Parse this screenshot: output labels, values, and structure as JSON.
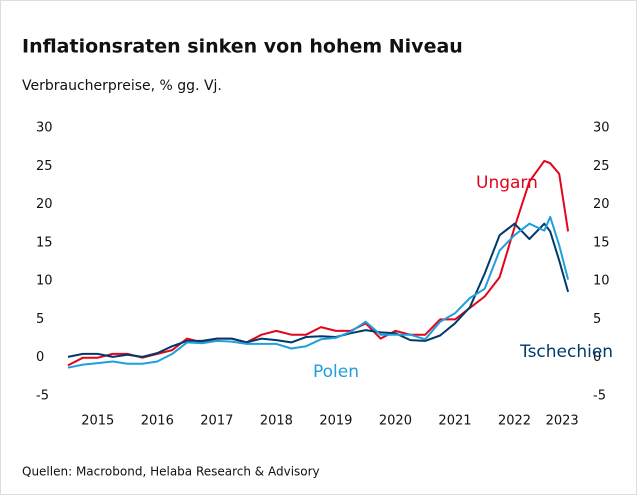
{
  "chart_data": {
    "type": "line",
    "title": "Inflationsraten sinken von hohem Niveau",
    "subtitle": "Verbraucherpreise, % gg. Vj.",
    "source": "Quellen: Macrobond, Helaba Research & Advisory",
    "x": [
      2015.0,
      2015.25,
      2015.5,
      2015.75,
      2016.0,
      2016.25,
      2016.5,
      2016.75,
      2017.0,
      2017.25,
      2017.5,
      2017.75,
      2018.0,
      2018.25,
      2018.5,
      2018.75,
      2019.0,
      2019.25,
      2019.5,
      2019.75,
      2020.0,
      2020.25,
      2020.5,
      2020.75,
      2021.0,
      2021.25,
      2021.5,
      2021.75,
      2022.0,
      2022.25,
      2022.5,
      2022.75,
      2023.0,
      2023.1,
      2023.25,
      2023.4
    ],
    "series": [
      {
        "name": "Ungarn",
        "color": "#e3051b",
        "values": [
          -1,
          0,
          0,
          0.5,
          0.5,
          0,
          0.5,
          1,
          2.5,
          2,
          2.5,
          2.5,
          2,
          3,
          3.5,
          3,
          3,
          4,
          3.5,
          3.5,
          4.5,
          2.5,
          3.5,
          3,
          3,
          5,
          5,
          6.5,
          8,
          10.5,
          17,
          23,
          25.7,
          25.4,
          24,
          16.5
        ]
      },
      {
        "name": "Tschechien",
        "color": "#003a6b",
        "values": [
          0.1,
          0.5,
          0.5,
          0.1,
          0.4,
          0.1,
          0.6,
          1.5,
          2.2,
          2.2,
          2.5,
          2.5,
          2,
          2.5,
          2.3,
          2,
          2.7,
          2.8,
          2.7,
          3.2,
          3.6,
          3.3,
          3.2,
          2.3,
          2.2,
          2.9,
          4.5,
          6.6,
          11,
          16,
          17.5,
          15.5,
          17.5,
          16.5,
          12.7,
          8.6
        ]
      },
      {
        "name": "Polen",
        "color": "#1fa0dc",
        "values": [
          -1.3,
          -0.9,
          -0.7,
          -0.5,
          -0.8,
          -0.8,
          -0.5,
          0.5,
          2,
          1.9,
          2.2,
          2.1,
          1.8,
          1.8,
          1.8,
          1.2,
          1.5,
          2.4,
          2.6,
          3.4,
          4.7,
          3,
          3,
          3,
          2.4,
          4.7,
          5.8,
          7.8,
          9,
          14,
          16,
          17.5,
          16.6,
          18.4,
          14.7,
          10.2
        ]
      }
    ],
    "xlim": [
      2015.0,
      2023.6
    ],
    "xticks": [
      {
        "value": 2015.5,
        "label": "2015"
      },
      {
        "value": 2016.5,
        "label": "2016"
      },
      {
        "value": 2017.5,
        "label": "2017"
      },
      {
        "value": 2018.5,
        "label": "2018"
      },
      {
        "value": 2019.5,
        "label": "2019"
      },
      {
        "value": 2020.5,
        "label": "2020"
      },
      {
        "value": 2021.5,
        "label": "2021"
      },
      {
        "value": 2022.5,
        "label": "2022"
      },
      {
        "value": 2023.3,
        "label": "2023"
      }
    ],
    "ylim": [
      -5,
      30
    ],
    "yticks": [
      -5,
      0,
      5,
      10,
      15,
      20,
      25,
      30
    ],
    "y2lim": [
      -5,
      30
    ],
    "y2ticks": [
      -5,
      0,
      5,
      10,
      15,
      20,
      25,
      30
    ]
  }
}
